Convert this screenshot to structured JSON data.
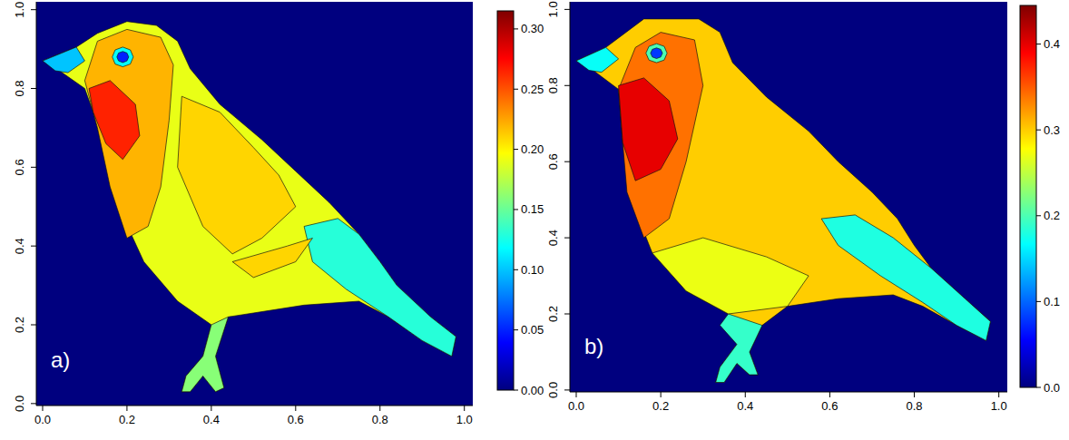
{
  "chart_data": [
    {
      "type": "heatmap",
      "title": "a)",
      "xlim": [
        -0.015,
        1.02
      ],
      "ylim": [
        -0.005,
        1.02
      ],
      "xticks": [
        {
          "value": 0,
          "label": "0.0"
        },
        0.2,
        0.4,
        0.6,
        0.8,
        {
          "value": 1,
          "label": "1.0"
        }
      ],
      "yticks": [
        {
          "value": 0,
          "label": "0.0"
        },
        0.2,
        0.4,
        0.6,
        0.8,
        {
          "value": 1,
          "label": "1.0"
        }
      ],
      "zlim": [
        0,
        0.315
      ],
      "zticks": [
        {
          "value": 0,
          "label": "0.00"
        },
        0.05,
        {
          "value": 0.1,
          "label": "0.10"
        },
        0.15,
        {
          "value": 0.2,
          "label": "0.20"
        },
        0.25,
        {
          "value": 0.3,
          "label": "0.30"
        }
      ],
      "regions": [
        {
          "value": 0,
          "points": [
            [
              -0.015,
              -0.005
            ],
            [
              1.02,
              -0.005
            ],
            [
              1.02,
              1.02
            ],
            [
              -0.015,
              1.02
            ]
          ]
        },
        {
          "value": 0.19,
          "points": [
            [
              0.0,
              0.87
            ],
            [
              0.08,
              0.905
            ],
            [
              0.13,
              0.94
            ],
            [
              0.2,
              0.97
            ],
            [
              0.27,
              0.96
            ],
            [
              0.32,
              0.92
            ],
            [
              0.35,
              0.85
            ],
            [
              0.42,
              0.76
            ],
            [
              0.52,
              0.67
            ],
            [
              0.6,
              0.59
            ],
            [
              0.68,
              0.51
            ],
            [
              0.75,
              0.43
            ],
            [
              0.8,
              0.36
            ],
            [
              0.84,
              0.3
            ],
            [
              0.92,
              0.22
            ],
            [
              0.98,
              0.17
            ],
            [
              0.97,
              0.12
            ],
            [
              0.9,
              0.16
            ],
            [
              0.82,
              0.22
            ],
            [
              0.75,
              0.26
            ],
            [
              0.62,
              0.25
            ],
            [
              0.5,
              0.23
            ],
            [
              0.44,
              0.22
            ],
            [
              0.41,
              0.12
            ],
            [
              0.43,
              0.04
            ],
            [
              0.41,
              0.03
            ],
            [
              0.38,
              0.07
            ],
            [
              0.35,
              0.03
            ],
            [
              0.33,
              0.03
            ],
            [
              0.34,
              0.07
            ],
            [
              0.38,
              0.12
            ],
            [
              0.4,
              0.2
            ],
            [
              0.32,
              0.26
            ],
            [
              0.24,
              0.36
            ],
            [
              0.18,
              0.5
            ],
            [
              0.15,
              0.62
            ],
            [
              0.12,
              0.74
            ],
            [
              0.1,
              0.8
            ],
            [
              0.04,
              0.845
            ]
          ]
        },
        {
          "value": 0.13,
          "points": [
            [
              0.62,
              0.45
            ],
            [
              0.7,
              0.47
            ],
            [
              0.75,
              0.43
            ],
            [
              0.8,
              0.36
            ],
            [
              0.84,
              0.3
            ],
            [
              0.92,
              0.22
            ],
            [
              0.98,
              0.17
            ],
            [
              0.97,
              0.12
            ],
            [
              0.9,
              0.16
            ],
            [
              0.82,
              0.22
            ],
            [
              0.72,
              0.29
            ],
            [
              0.64,
              0.36
            ]
          ]
        },
        {
          "value": 0.21,
          "points": [
            [
              0.33,
              0.78
            ],
            [
              0.42,
              0.74
            ],
            [
              0.5,
              0.65
            ],
            [
              0.56,
              0.58
            ],
            [
              0.6,
              0.5
            ],
            [
              0.52,
              0.42
            ],
            [
              0.45,
              0.38
            ],
            [
              0.38,
              0.45
            ],
            [
              0.32,
              0.6
            ]
          ]
        },
        {
          "value": 0.22,
          "points": [
            [
              0.1,
              0.82
            ],
            [
              0.13,
              0.92
            ],
            [
              0.2,
              0.95
            ],
            [
              0.28,
              0.93
            ],
            [
              0.31,
              0.86
            ],
            [
              0.3,
              0.72
            ],
            [
              0.28,
              0.55
            ],
            [
              0.25,
              0.45
            ],
            [
              0.2,
              0.42
            ],
            [
              0.16,
              0.55
            ],
            [
              0.13,
              0.7
            ]
          ]
        },
        {
          "value": 0.21,
          "points": [
            [
              0.45,
              0.36
            ],
            [
              0.58,
              0.4
            ],
            [
              0.64,
              0.42
            ],
            [
              0.6,
              0.36
            ],
            [
              0.5,
              0.32
            ]
          ]
        },
        {
          "value": 0.16,
          "points": [
            [
              0.44,
              0.22
            ],
            [
              0.41,
              0.12
            ],
            [
              0.43,
              0.04
            ],
            [
              0.41,
              0.03
            ],
            [
              0.38,
              0.07
            ],
            [
              0.35,
              0.03
            ],
            [
              0.33,
              0.03
            ],
            [
              0.34,
              0.07
            ],
            [
              0.38,
              0.12
            ],
            [
              0.4,
              0.2
            ]
          ]
        },
        {
          "value": 0.265,
          "points": [
            [
              0.11,
              0.8
            ],
            [
              0.16,
              0.82
            ],
            [
              0.22,
              0.76
            ],
            [
              0.23,
              0.68
            ],
            [
              0.19,
              0.62
            ],
            [
              0.15,
              0.66
            ],
            [
              0.12,
              0.74
            ]
          ]
        },
        {
          "value": 0.1,
          "points": [
            [
              0.0,
              0.87
            ],
            [
              0.08,
              0.905
            ],
            [
              0.1,
              0.87
            ],
            [
              0.06,
              0.84
            ],
            [
              0.03,
              0.845
            ]
          ]
        },
        {
          "value": 0.12,
          "points": [
            [
              0.215,
              0.88
            ],
            [
              0.208,
              0.898
            ],
            [
              0.19,
              0.905
            ],
            [
              0.172,
              0.898
            ],
            [
              0.165,
              0.88
            ],
            [
              0.172,
              0.862
            ],
            [
              0.19,
              0.855
            ],
            [
              0.208,
              0.862
            ]
          ]
        },
        {
          "value": 0.05,
          "points": [
            [
              0.204,
              0.88
            ],
            [
              0.2,
              0.89
            ],
            [
              0.19,
              0.894
            ],
            [
              0.18,
              0.89
            ],
            [
              0.176,
              0.88
            ],
            [
              0.18,
              0.87
            ],
            [
              0.19,
              0.866
            ],
            [
              0.2,
              0.87
            ]
          ]
        }
      ]
    },
    {
      "type": "heatmap",
      "title": "b)",
      "xlim": [
        -0.015,
        1.02
      ],
      "ylim": [
        -0.005,
        1.02
      ],
      "xticks": [
        {
          "value": 0,
          "label": "0.0"
        },
        0.2,
        0.4,
        0.6,
        0.8,
        {
          "value": 1,
          "label": "1.0"
        }
      ],
      "yticks": [
        {
          "value": 0,
          "label": "0.0"
        },
        0.2,
        0.4,
        0.6,
        0.8,
        {
          "value": 1,
          "label": "1.0"
        }
      ],
      "zlim": [
        0,
        0.445
      ],
      "zticks": [
        {
          "value": 0,
          "label": "0.0"
        },
        0.1,
        0.2,
        0.3,
        0.4
      ],
      "regions": [
        {
          "value": 0,
          "points": [
            [
              -0.015,
              -0.005
            ],
            [
              1.02,
              -0.005
            ],
            [
              1.02,
              1.02
            ],
            [
              -0.015,
              1.02
            ]
          ]
        },
        {
          "value": 0.3,
          "points": [
            [
              0.0,
              0.865
            ],
            [
              0.07,
              0.9
            ],
            [
              0.13,
              0.95
            ],
            [
              0.16,
              0.975
            ],
            [
              0.29,
              0.975
            ],
            [
              0.34,
              0.94
            ],
            [
              0.37,
              0.86
            ],
            [
              0.45,
              0.77
            ],
            [
              0.55,
              0.68
            ],
            [
              0.62,
              0.6
            ],
            [
              0.7,
              0.52
            ],
            [
              0.76,
              0.45
            ],
            [
              0.8,
              0.38
            ],
            [
              0.84,
              0.32
            ],
            [
              0.92,
              0.24
            ],
            [
              0.98,
              0.18
            ],
            [
              0.97,
              0.13
            ],
            [
              0.9,
              0.17
            ],
            [
              0.82,
              0.22
            ],
            [
              0.75,
              0.25
            ],
            [
              0.62,
              0.24
            ],
            [
              0.5,
              0.22
            ],
            [
              0.44,
              0.17
            ],
            [
              0.41,
              0.1
            ],
            [
              0.43,
              0.04
            ],
            [
              0.41,
              0.04
            ],
            [
              0.38,
              0.07
            ],
            [
              0.35,
              0.02
            ],
            [
              0.33,
              0.02
            ],
            [
              0.34,
              0.06
            ],
            [
              0.38,
              0.12
            ],
            [
              0.36,
              0.2
            ],
            [
              0.26,
              0.26
            ],
            [
              0.18,
              0.36
            ],
            [
              0.13,
              0.5
            ],
            [
              0.11,
              0.65
            ],
            [
              0.1,
              0.79
            ],
            [
              0.04,
              0.84
            ]
          ]
        },
        {
          "value": 0.27,
          "points": [
            [
              0.18,
              0.36
            ],
            [
              0.26,
              0.26
            ],
            [
              0.36,
              0.2
            ],
            [
              0.5,
              0.22
            ],
            [
              0.55,
              0.3
            ],
            [
              0.45,
              0.35
            ],
            [
              0.3,
              0.4
            ]
          ]
        },
        {
          "value": 0.18,
          "points": [
            [
              0.58,
              0.45
            ],
            [
              0.66,
              0.46
            ],
            [
              0.75,
              0.4
            ],
            [
              0.84,
              0.32
            ],
            [
              0.92,
              0.24
            ],
            [
              0.98,
              0.18
            ],
            [
              0.97,
              0.13
            ],
            [
              0.9,
              0.17
            ],
            [
              0.82,
              0.23
            ],
            [
              0.72,
              0.3
            ],
            [
              0.62,
              0.38
            ]
          ]
        },
        {
          "value": 0.34,
          "points": [
            [
              0.1,
              0.79
            ],
            [
              0.14,
              0.9
            ],
            [
              0.2,
              0.94
            ],
            [
              0.28,
              0.92
            ],
            [
              0.3,
              0.8
            ],
            [
              0.26,
              0.6
            ],
            [
              0.22,
              0.45
            ],
            [
              0.16,
              0.4
            ],
            [
              0.12,
              0.52
            ],
            [
              0.11,
              0.65
            ]
          ]
        },
        {
          "value": 0.4,
          "points": [
            [
              0.1,
              0.8
            ],
            [
              0.16,
              0.82
            ],
            [
              0.22,
              0.76
            ],
            [
              0.24,
              0.66
            ],
            [
              0.2,
              0.58
            ],
            [
              0.14,
              0.55
            ],
            [
              0.11,
              0.65
            ]
          ]
        },
        {
          "value": 0.19,
          "points": [
            [
              0.36,
              0.2
            ],
            [
              0.44,
              0.17
            ],
            [
              0.41,
              0.1
            ],
            [
              0.43,
              0.04
            ],
            [
              0.41,
              0.04
            ],
            [
              0.38,
              0.07
            ],
            [
              0.35,
              0.02
            ],
            [
              0.33,
              0.02
            ],
            [
              0.34,
              0.06
            ],
            [
              0.38,
              0.12
            ],
            [
              0.34,
              0.17
            ]
          ]
        },
        {
          "value": 0.17,
          "points": [
            [
              0.0,
              0.865
            ],
            [
              0.07,
              0.9
            ],
            [
              0.1,
              0.87
            ],
            [
              0.06,
              0.835
            ],
            [
              0.03,
              0.84
            ]
          ]
        },
        {
          "value": 0.2,
          "points": [
            [
              0.215,
              0.885
            ],
            [
              0.208,
              0.903
            ],
            [
              0.19,
              0.91
            ],
            [
              0.172,
              0.903
            ],
            [
              0.165,
              0.885
            ],
            [
              0.172,
              0.867
            ],
            [
              0.19,
              0.86
            ],
            [
              0.208,
              0.867
            ]
          ]
        },
        {
          "value": 0.08,
          "points": [
            [
              0.204,
              0.885
            ],
            [
              0.2,
              0.895
            ],
            [
              0.19,
              0.899
            ],
            [
              0.18,
              0.895
            ],
            [
              0.176,
              0.885
            ],
            [
              0.18,
              0.875
            ],
            [
              0.19,
              0.871
            ],
            [
              0.2,
              0.875
            ]
          ]
        }
      ]
    }
  ]
}
